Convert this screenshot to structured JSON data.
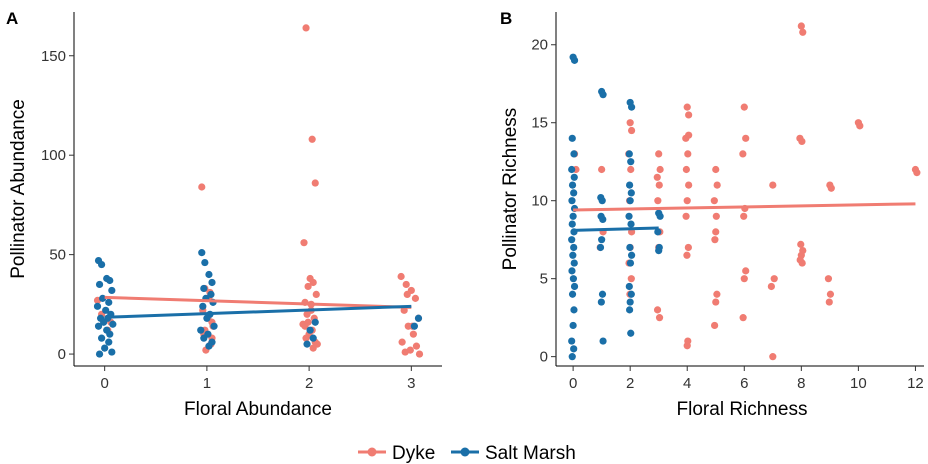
{
  "colors": {
    "Dyke": "#f07c72",
    "Salt Marsh": "#1a6fa8"
  },
  "legend": [
    {
      "label": "Dyke",
      "color": "#f07c72"
    },
    {
      "label": "Salt Marsh",
      "color": "#1a6fa8"
    }
  ],
  "chart_data": [
    {
      "panel": "A",
      "type": "scatter",
      "xlabel": "Floral Abundance",
      "ylabel": "Pollinator Abundance",
      "xlim": [
        -0.3,
        3.3
      ],
      "ylim": [
        -6,
        172
      ],
      "xticks": [
        "0",
        "1",
        "2",
        "3"
      ],
      "xtick_values": [
        0,
        1,
        2,
        3
      ],
      "yticks": [
        "0",
        "50",
        "100",
        "150"
      ],
      "ytick_values": [
        0,
        50,
        100,
        150
      ],
      "series": [
        {
          "name": "Dyke",
          "x": [
            -0.07,
            -0.03,
            0.03,
            0.06,
            0.95,
            0.98,
            1.02,
            1.05,
            0.97,
            1.04,
            0.99,
            1.06,
            0.96,
            1.01,
            1.03,
            0.98,
            1.05,
            1.97,
            2.03,
            2.06,
            1.95,
            2.01,
            2.04,
            1.99,
            2.07,
            1.96,
            2.02,
            1.98,
            2.05,
            1.94,
            2.03,
            2.0,
            1.97,
            2.06,
            2.08,
            1.99,
            2.02,
            1.96,
            2.04,
            2.9,
            2.95,
            3.0,
            3.04,
            2.93,
            3.07,
            2.97,
            3.02,
            2.91,
            3.05,
            2.99,
            3.08,
            2.94,
            3.01,
            2.96
          ],
          "y": [
            27,
            20,
            12,
            16,
            84,
            33,
            28,
            16,
            10,
            5,
            2,
            14,
            22,
            18,
            31,
            12,
            8,
            164,
            108,
            86,
            56,
            38,
            36,
            34,
            30,
            26,
            22,
            20,
            18,
            15,
            12,
            10,
            8,
            6,
            5,
            16,
            25,
            14,
            3,
            39,
            35,
            32,
            28,
            22,
            18,
            14,
            10,
            6,
            4,
            2,
            0,
            1,
            14,
            30
          ],
          "trend": {
            "x": [
              0,
              3
            ],
            "y": [
              28.5,
              23.5
            ]
          }
        },
        {
          "name": "Salt Marsh",
          "x": [
            -0.06,
            -0.03,
            0.02,
            0.05,
            -0.05,
            0.07,
            -0.02,
            0.04,
            -0.07,
            0.01,
            0.06,
            -0.04,
            0.03,
            -0.01,
            0.08,
            -0.06,
            0.02,
            0.05,
            -0.03,
            0.04,
            0.0,
            0.07,
            -0.05,
            0.95,
            0.98,
            1.02,
            1.05,
            0.97,
            1.04,
            0.99,
            1.06,
            0.96,
            1.03,
            1.0,
            1.07,
            0.94,
            1.01,
            0.97,
            1.05,
            1.02,
            1.98,
            2.04,
            2.01,
            2.06,
            3.03,
            3.07
          ],
          "y": [
            47,
            45,
            38,
            37,
            35,
            32,
            28,
            26,
            24,
            22,
            20,
            18,
            18,
            16,
            15,
            14,
            12,
            10,
            8,
            6,
            3,
            1,
            0,
            51,
            46,
            40,
            36,
            33,
            30,
            28,
            26,
            24,
            20,
            18,
            14,
            12,
            10,
            8,
            6,
            4,
            5,
            8,
            12,
            16,
            14,
            18
          ],
          "trend": {
            "x": [
              0,
              3
            ],
            "y": [
              18.5,
              24.0
            ]
          }
        }
      ]
    },
    {
      "panel": "B",
      "type": "scatter",
      "xlabel": "Floral Richness",
      "ylabel": "Pollinator Richness",
      "xlim": [
        -0.6,
        12.3
      ],
      "ylim": [
        -0.6,
        22.1
      ],
      "xticks": [
        "0",
        "2",
        "4",
        "6",
        "8",
        "10",
        "12"
      ],
      "xtick_values": [
        0,
        2,
        4,
        6,
        8,
        10,
        12
      ],
      "yticks": [
        "0",
        "5",
        "10",
        "15",
        "20"
      ],
      "ytick_values": [
        0,
        5,
        10,
        15,
        20
      ],
      "series": [
        {
          "name": "Dyke",
          "x": [
            0.05,
            0.1,
            1.0,
            1.05,
            0.95,
            2.0,
            2.05,
            1.95,
            2.02,
            1.98,
            2.05,
            2.0,
            1.96,
            2.04,
            1.99,
            3.0,
            3.05,
            2.95,
            3.02,
            2.97,
            3.04,
            3.0,
            2.96,
            3.03,
            4.0,
            4.05,
            3.95,
            4.02,
            3.97,
            4.05,
            4.0,
            3.96,
            4.04,
            3.99,
            4.02,
            4.0,
            4.05,
            5.0,
            5.05,
            4.95,
            5.02,
            5.0,
            4.97,
            5.04,
            5.0,
            4.96,
            6.0,
            6.05,
            5.95,
            6.02,
            5.98,
            6.05,
            6.0,
            5.96,
            7.0,
            7.05,
            6.95,
            7.0,
            8.0,
            8.05,
            7.95,
            8.02,
            7.98,
            8.05,
            8.0,
            7.96,
            8.03,
            9.0,
            9.05,
            8.95,
            9.02,
            8.98,
            10.0,
            10.05,
            12.0,
            12.05
          ],
          "y": [
            13,
            12,
            12,
            8,
            7,
            15,
            14.5,
            13,
            12,
            10,
            8,
            7,
            6,
            5,
            4,
            13,
            12,
            11.5,
            11,
            10,
            8,
            7,
            3,
            2.5,
            16,
            15.5,
            14,
            13,
            12,
            11,
            10,
            9,
            7,
            6.5,
            1,
            0.7,
            14.2,
            12,
            11,
            10,
            9,
            8,
            7.5,
            4,
            3.5,
            2,
            16,
            14,
            13,
            9.5,
            9,
            5.5,
            5,
            2.5,
            11,
            5,
            4.5,
            0,
            21.2,
            20.8,
            14,
            13.8,
            7.2,
            6.8,
            6.5,
            6.2,
            6,
            11,
            10.8,
            5,
            4,
            3.5,
            15,
            14.8,
            12,
            11.8
          ],
          "trend": {
            "x": [
              0,
              12
            ],
            "y": [
              9.4,
              9.8
            ]
          }
        },
        {
          "name": "Salt Marsh",
          "x": [
            0.0,
            0.05,
            -0.03,
            0.03,
            -0.05,
            0.04,
            -0.02,
            0.02,
            -0.04,
            0.05,
            0.0,
            -0.03,
            0.03,
            -0.05,
            0.02,
            -0.01,
            0.04,
            -0.04,
            0.01,
            0.05,
            -0.02,
            0.03,
            0.0,
            -0.05,
            0.02,
            -0.03,
            1.0,
            1.05,
            0.97,
            1.02,
            0.98,
            1.04,
            1.0,
            0.96,
            1.03,
            0.99,
            1.05,
            2.0,
            2.05,
            1.97,
            2.02,
            1.98,
            2.04,
            2.0,
            1.96,
            2.03,
            1.99,
            2.05,
            2.01,
            1.97,
            2.04,
            2.0,
            1.98,
            2.02,
            3.0,
            3.05,
            2.97,
            3.02,
            3.0
          ],
          "y": [
            19.2,
            19,
            14,
            13,
            12,
            11.5,
            11,
            10.5,
            10,
            9.5,
            9,
            8.5,
            8,
            7.5,
            7,
            6.5,
            6,
            5.5,
            5,
            4.5,
            4,
            3,
            2,
            1,
            0.5,
            0,
            17,
            16.8,
            10.2,
            10,
            9,
            8.8,
            7.5,
            7,
            4,
            3.5,
            1,
            16.3,
            16,
            13,
            12.5,
            11,
            10.5,
            10,
            9,
            8.5,
            7,
            6.5,
            6,
            4.5,
            4,
            3.5,
            3,
            1.5,
            9.2,
            9,
            8,
            7,
            6.8
          ],
          "trend": {
            "x": [
              0,
              3
            ],
            "y": [
              8.1,
              8.25
            ]
          }
        }
      ]
    }
  ]
}
